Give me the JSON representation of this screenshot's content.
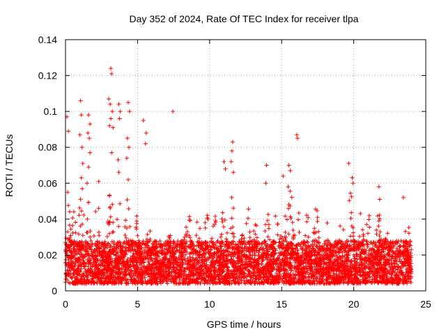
{
  "chart_data": {
    "type": "scatter",
    "title": "Day 352 of 2024, Rate Of TEC Index for receiver tlpa",
    "xlabel": "GPS time / hours",
    "ylabel": "ROTI / TECUs",
    "xlim": [
      0,
      25
    ],
    "ylim": [
      0,
      0.14
    ],
    "x_ticks": [
      "0",
      "5",
      "10",
      "15",
      "20",
      "25"
    ],
    "y_ticks": [
      "0",
      "0.02",
      "0.04",
      "0.06",
      "0.08",
      "0.1",
      "0.12",
      "0.14"
    ],
    "grid": true,
    "marker": "+",
    "color": "#ff0000",
    "time_range_hours": [
      0,
      24
    ],
    "outliers": [
      {
        "x": 0.1,
        "y": 0.097
      },
      {
        "x": 0.2,
        "y": 0.089
      },
      {
        "x": 0.15,
        "y": 0.055
      },
      {
        "x": 1.05,
        "y": 0.106
      },
      {
        "x": 1.1,
        "y": 0.098
      },
      {
        "x": 1.0,
        "y": 0.087
      },
      {
        "x": 1.15,
        "y": 0.08
      },
      {
        "x": 1.2,
        "y": 0.071
      },
      {
        "x": 1.1,
        "y": 0.063
      },
      {
        "x": 1.6,
        "y": 0.098
      },
      {
        "x": 1.7,
        "y": 0.093
      },
      {
        "x": 1.55,
        "y": 0.088
      },
      {
        "x": 1.65,
        "y": 0.085
      },
      {
        "x": 1.7,
        "y": 0.077
      },
      {
        "x": 1.6,
        "y": 0.069
      },
      {
        "x": 1.5,
        "y": 0.06
      },
      {
        "x": 2.3,
        "y": 0.061
      },
      {
        "x": 3.15,
        "y": 0.124
      },
      {
        "x": 3.2,
        "y": 0.121
      },
      {
        "x": 3.0,
        "y": 0.107
      },
      {
        "x": 3.1,
        "y": 0.104
      },
      {
        "x": 3.25,
        "y": 0.1
      },
      {
        "x": 3.15,
        "y": 0.096
      },
      {
        "x": 3.05,
        "y": 0.092
      },
      {
        "x": 3.3,
        "y": 0.091
      },
      {
        "x": 3.2,
        "y": 0.077
      },
      {
        "x": 3.7,
        "y": 0.104
      },
      {
        "x": 3.8,
        "y": 0.1
      },
      {
        "x": 3.75,
        "y": 0.096
      },
      {
        "x": 3.65,
        "y": 0.073
      },
      {
        "x": 3.7,
        "y": 0.066
      },
      {
        "x": 4.35,
        "y": 0.105
      },
      {
        "x": 4.45,
        "y": 0.1
      },
      {
        "x": 4.3,
        "y": 0.085
      },
      {
        "x": 4.4,
        "y": 0.08
      },
      {
        "x": 4.25,
        "y": 0.074
      },
      {
        "x": 4.35,
        "y": 0.062
      },
      {
        "x": 5.4,
        "y": 0.095
      },
      {
        "x": 5.6,
        "y": 0.088
      },
      {
        "x": 5.55,
        "y": 0.082
      },
      {
        "x": 7.45,
        "y": 0.1
      },
      {
        "x": 11.0,
        "y": 0.072
      },
      {
        "x": 11.1,
        "y": 0.068
      },
      {
        "x": 11.6,
        "y": 0.083
      },
      {
        "x": 11.55,
        "y": 0.078
      },
      {
        "x": 11.5,
        "y": 0.072
      },
      {
        "x": 11.65,
        "y": 0.066
      },
      {
        "x": 13.95,
        "y": 0.07
      },
      {
        "x": 13.9,
        "y": 0.06
      },
      {
        "x": 15.1,
        "y": 0.064
      },
      {
        "x": 15.5,
        "y": 0.07
      },
      {
        "x": 15.6,
        "y": 0.067
      },
      {
        "x": 15.45,
        "y": 0.058
      },
      {
        "x": 16.05,
        "y": 0.087
      },
      {
        "x": 16.1,
        "y": 0.085
      },
      {
        "x": 19.65,
        "y": 0.071
      },
      {
        "x": 19.9,
        "y": 0.063
      },
      {
        "x": 19.95,
        "y": 0.06
      },
      {
        "x": 21.75,
        "y": 0.058
      },
      {
        "x": 21.8,
        "y": 0.051
      },
      {
        "x": 23.45,
        "y": 0.052
      }
    ],
    "peaks": [
      {
        "x": 0.15,
        "y": 0.055,
        "w": 0.35
      },
      {
        "x": 0.6,
        "y": 0.048,
        "w": 0.3
      },
      {
        "x": 1.1,
        "y": 0.06,
        "w": 0.3
      },
      {
        "x": 1.6,
        "y": 0.05,
        "w": 0.3
      },
      {
        "x": 2.2,
        "y": 0.05,
        "w": 0.35
      },
      {
        "x": 3.15,
        "y": 0.062,
        "w": 0.3
      },
      {
        "x": 3.75,
        "y": 0.06,
        "w": 0.3
      },
      {
        "x": 4.3,
        "y": 0.062,
        "w": 0.35
      },
      {
        "x": 4.9,
        "y": 0.048,
        "w": 0.3
      },
      {
        "x": 5.8,
        "y": 0.035,
        "w": 0.4
      },
      {
        "x": 7.3,
        "y": 0.035,
        "w": 0.5
      },
      {
        "x": 8.4,
        "y": 0.04,
        "w": 0.4
      },
      {
        "x": 8.6,
        "y": 0.045,
        "w": 0.3
      },
      {
        "x": 9.2,
        "y": 0.042,
        "w": 0.3
      },
      {
        "x": 9.8,
        "y": 0.045,
        "w": 0.3
      },
      {
        "x": 10.3,
        "y": 0.052,
        "w": 0.3
      },
      {
        "x": 11.0,
        "y": 0.055,
        "w": 0.3
      },
      {
        "x": 11.6,
        "y": 0.058,
        "w": 0.3
      },
      {
        "x": 12.3,
        "y": 0.048,
        "w": 0.3
      },
      {
        "x": 12.6,
        "y": 0.052,
        "w": 0.3
      },
      {
        "x": 13.2,
        "y": 0.042,
        "w": 0.4
      },
      {
        "x": 14.0,
        "y": 0.055,
        "w": 0.3
      },
      {
        "x": 14.6,
        "y": 0.048,
        "w": 0.3
      },
      {
        "x": 15.1,
        "y": 0.06,
        "w": 0.35
      },
      {
        "x": 15.6,
        "y": 0.06,
        "w": 0.35
      },
      {
        "x": 16.1,
        "y": 0.05,
        "w": 0.3
      },
      {
        "x": 16.8,
        "y": 0.045,
        "w": 0.3
      },
      {
        "x": 17.4,
        "y": 0.048,
        "w": 0.3
      },
      {
        "x": 18.2,
        "y": 0.04,
        "w": 0.4
      },
      {
        "x": 19.2,
        "y": 0.046,
        "w": 0.3
      },
      {
        "x": 19.8,
        "y": 0.058,
        "w": 0.3
      },
      {
        "x": 20.5,
        "y": 0.045,
        "w": 0.3
      },
      {
        "x": 21.0,
        "y": 0.045,
        "w": 0.3
      },
      {
        "x": 21.7,
        "y": 0.05,
        "w": 0.3
      },
      {
        "x": 22.3,
        "y": 0.035,
        "w": 0.3
      },
      {
        "x": 23.0,
        "y": 0.03,
        "w": 0.3
      },
      {
        "x": 23.7,
        "y": 0.04,
        "w": 0.35
      }
    ]
  }
}
